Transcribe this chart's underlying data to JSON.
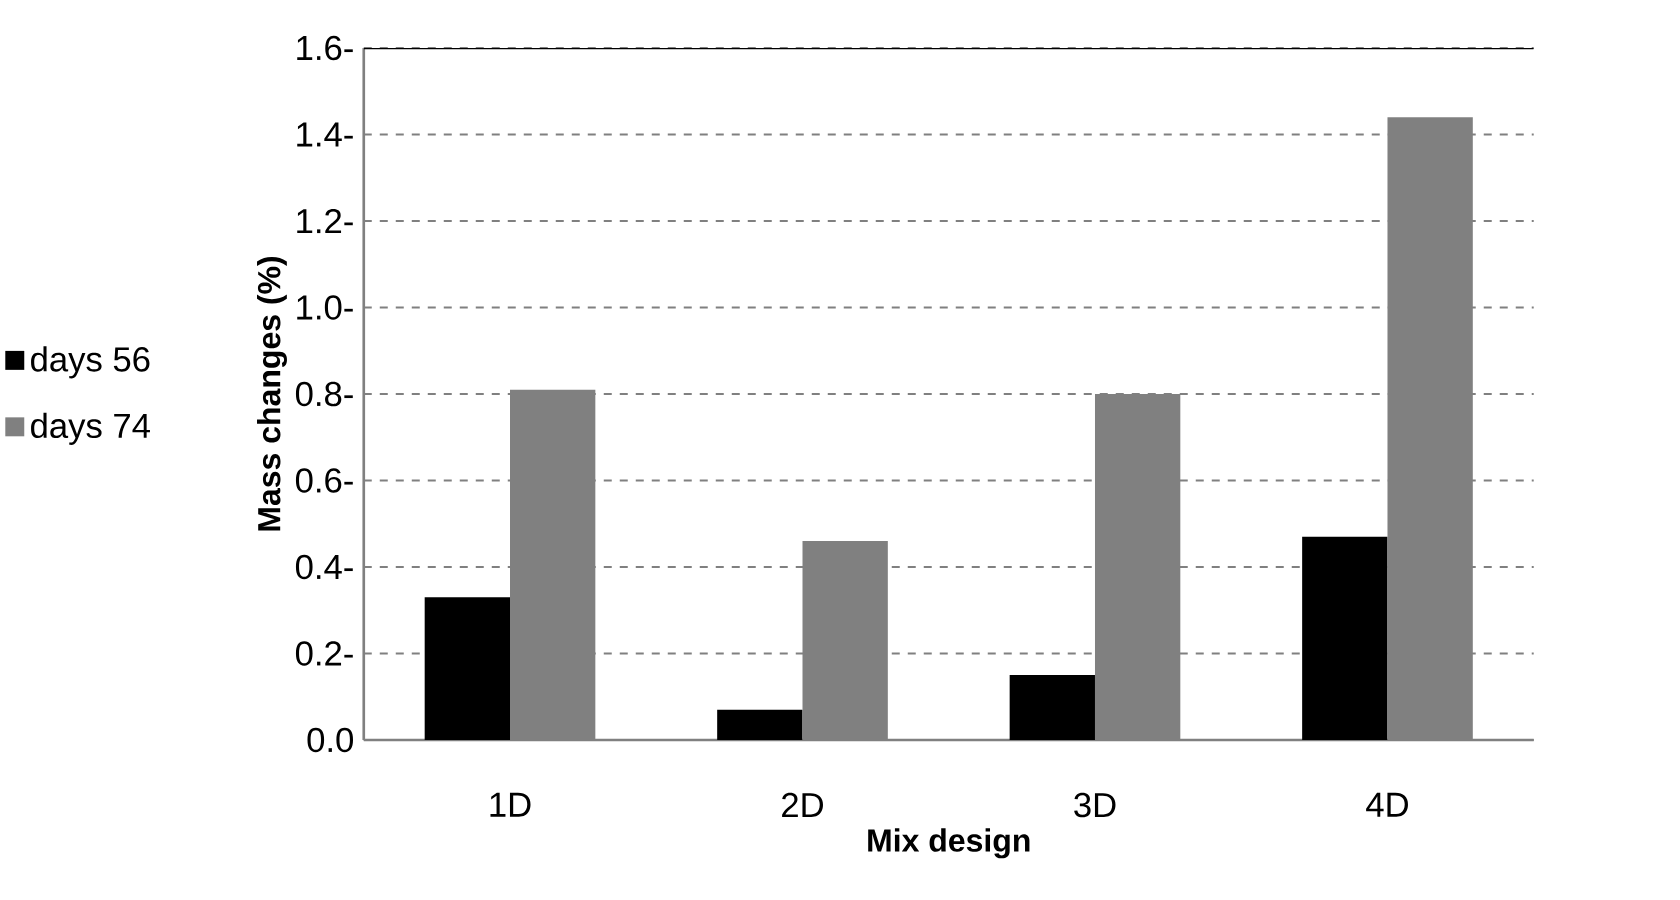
{
  "chart_data": {
    "type": "bar",
    "xlabel": "Mix design",
    "ylabel": "Mass changes (%)",
    "categories": [
      "1D",
      "2D",
      "3D",
      "4D"
    ],
    "series": [
      {
        "name": "days 56",
        "color": "#000000",
        "values": [
          0.33,
          0.07,
          0.15,
          0.47
        ]
      },
      {
        "name": "days 74",
        "color": "#808080",
        "values": [
          0.81,
          0.46,
          0.8,
          1.44
        ]
      }
    ],
    "ylim": [
      0,
      1.6
    ],
    "yticks": [
      {
        "value": 0,
        "label": "0.0"
      },
      {
        "value": 0.2,
        "label": "0.2-"
      },
      {
        "value": 0.4,
        "label": "0.4-"
      },
      {
        "value": 0.6,
        "label": "0.6-"
      },
      {
        "value": 0.8,
        "label": "0.8-"
      },
      {
        "value": 1.0,
        "label": "1.0-"
      },
      {
        "value": 1.2,
        "label": "1.2-"
      },
      {
        "value": 1.4,
        "label": "1.4-"
      },
      {
        "value": 1.6,
        "label": "1.6-"
      }
    ],
    "grid": "y",
    "legend": "left"
  }
}
